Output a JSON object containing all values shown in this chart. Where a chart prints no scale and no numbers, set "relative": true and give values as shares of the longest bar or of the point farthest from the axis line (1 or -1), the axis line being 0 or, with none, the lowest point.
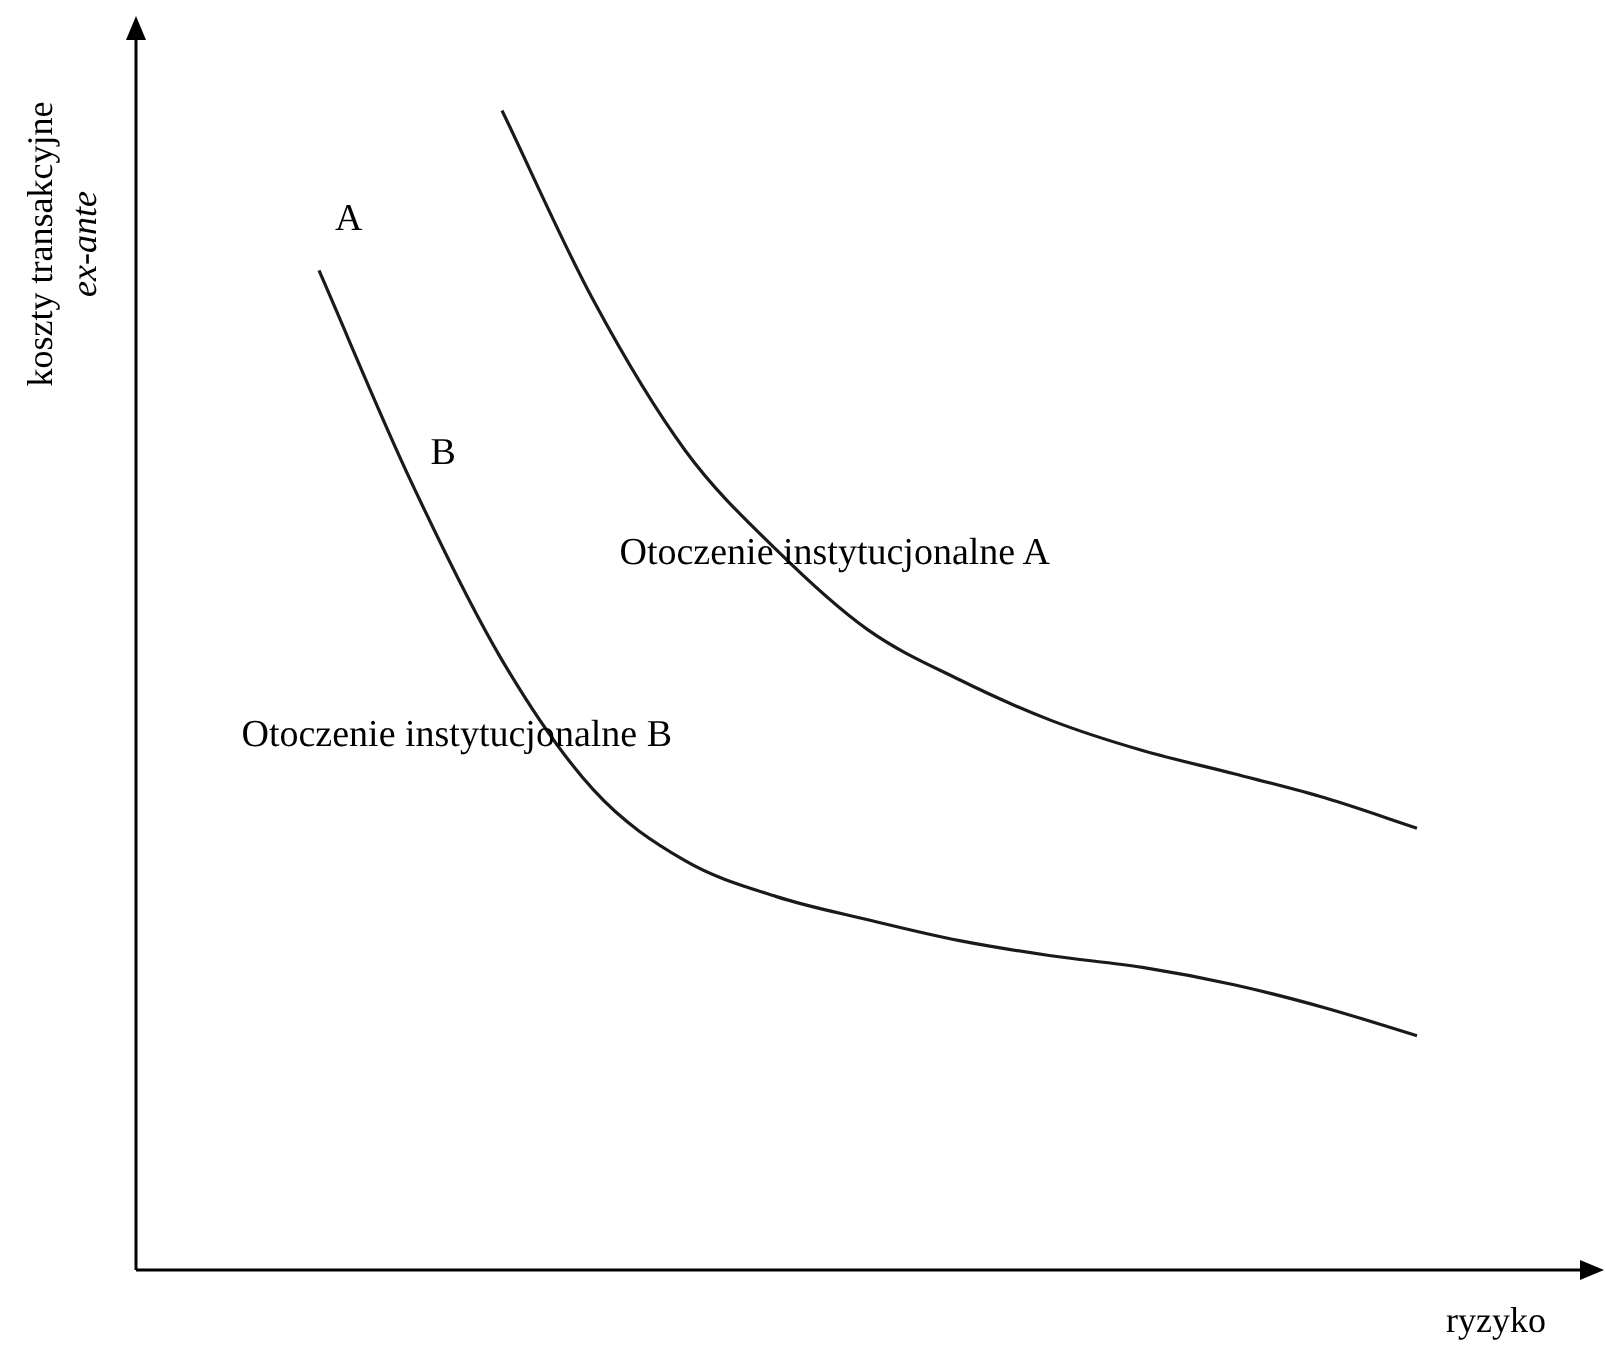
{
  "chart_data": {
    "type": "line",
    "relative": true,
    "xlabel": "ryzyko",
    "ylabel": "koszty transakcyjne ex-ante",
    "categories": [
      null,
      null,
      null,
      null,
      null,
      null,
      null,
      null,
      null,
      null,
      null,
      null,
      null,
      null,
      null,
      null,
      null
    ],
    "series": [
      {
        "name": "Otoczenie instytucjonalne A",
        "color": "#1a1a1a",
        "values": [
          null,
          null,
          null,
          null,
          1,
          0.836,
          0.707,
          0.621,
          0.552,
          0.509,
          0.474,
          0.448,
          0.428,
          0.407,
          0.381,
          null,
          null
        ]
      },
      {
        "name": "Otoczenie instytucjonalne B",
        "color": "#1a1a1a",
        "values": [
          null,
          null,
          0.862,
          0.681,
          0.526,
          0.414,
          0.353,
          0.322,
          0.302,
          0.284,
          0.271,
          0.261,
          0.246,
          0.226,
          0.202,
          null,
          null
        ]
      }
    ],
    "annotations": [
      "A",
      "B"
    ],
    "marker": "none",
    "line_style": "solid",
    "grid": false,
    "legend": false
  }
}
